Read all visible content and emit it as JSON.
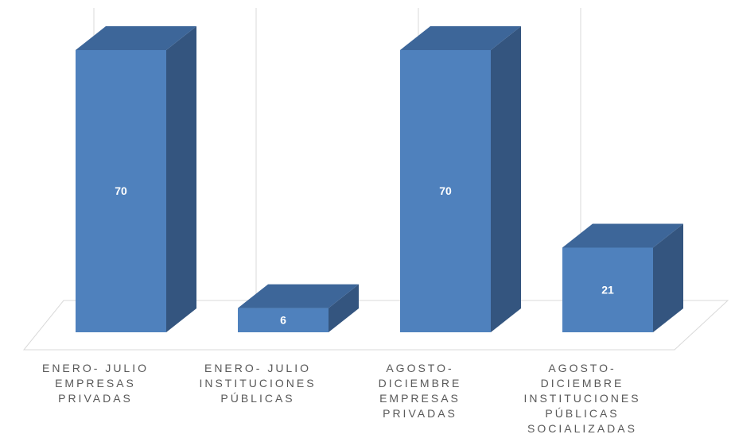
{
  "chart_data": {
    "type": "bar3d",
    "categories": [
      "ENERO- JULIO\nEMPRESAS\nPRIVADAS",
      "ENERO- JULIO\nINSTITUCIONES\nPÚBLICAS",
      "AGOSTO-\nDICIEMBRE\nEMPRESAS\nPRIVADAS",
      "AGOSTO-\nDICIEMBRE\nINSTITUCIONES\nPÚBLICAS\nSOCIALIZADAS"
    ],
    "values": [
      70,
      6,
      70,
      21
    ],
    "color": "#4f81bd",
    "side_color": "#34557f",
    "top_color": "#3d6699",
    "grid": true
  }
}
